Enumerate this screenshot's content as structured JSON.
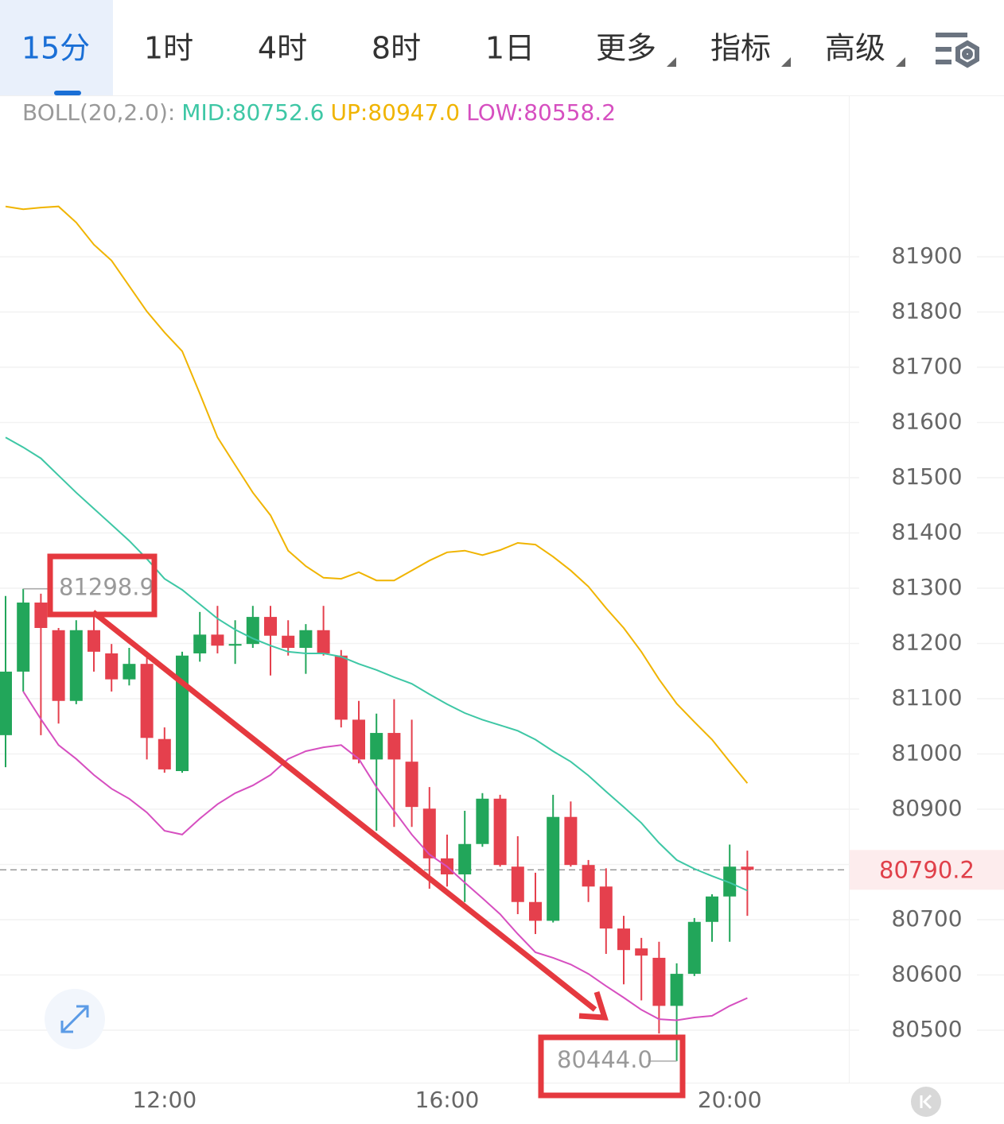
{
  "tabs": [
    "15分",
    "1时",
    "4时",
    "8时",
    "1日",
    "更多",
    "指标",
    "高级"
  ],
  "chart_data": {
    "type": "candlestick",
    "indicator": "BOLL(20,2.0):",
    "categories": [
      null,
      null,
      null,
      null,
      null,
      null,
      null,
      null,
      null,
      "12:00",
      null,
      null,
      null,
      null,
      null,
      null,
      null,
      null,
      null,
      null,
      null,
      null,
      null,
      null,
      null,
      "16:00",
      null,
      null,
      null,
      null,
      null,
      null,
      null,
      null,
      null,
      null,
      null,
      null,
      null,
      null,
      null,
      "20:00",
      null
    ],
    "open": [
      81034,
      81149,
      81274,
      81224,
      81096,
      81224,
      81182,
      81135,
      81163,
      81027,
      80969,
      81182,
      81216,
      81196,
      81199,
      81248,
      81214,
      81192,
      81224,
      81178,
      81062,
      80990,
      81038,
      80986,
      80901,
      80811,
      80782,
      80837,
      80919,
      80796,
      80732,
      80698,
      80886,
      80799,
      80760,
      80684,
      80648,
      80631,
      80544,
      80602,
      80696,
      80742,
      80796
    ],
    "high": [
      81286,
      81298.9,
      81290,
      81228,
      81242,
      81257,
      81199,
      81192,
      81185,
      81048,
      81185,
      81257,
      81268,
      81242,
      81268,
      81268,
      81242,
      81235,
      81268,
      81188,
      81096,
      81073,
      81099,
      81062,
      80940,
      80854,
      80897,
      80929,
      80926,
      80851,
      80785,
      80926,
      80914,
      80808,
      80793,
      80707,
      80667,
      80660,
      80621,
      80703,
      80746,
      80836,
      80825
    ],
    "low": [
      80976,
      81113,
      81034,
      81055,
      81090,
      81149,
      81113,
      81124,
      80990,
      80966,
      80966,
      81167,
      81182,
      81163,
      81192,
      81142,
      81178,
      81145,
      81178,
      81048,
      80983,
      80861,
      80868,
      80868,
      80756,
      80760,
      80732,
      80832,
      80796,
      80710,
      80674,
      80695,
      80796,
      80732,
      80638,
      80583,
      80554,
      80494,
      80444,
      80598,
      80660,
      80660,
      80707
    ],
    "close": [
      81149,
      81274,
      81228,
      81096,
      81224,
      81185,
      81135,
      81163,
      81029,
      80972,
      81178,
      81216,
      81196,
      81199,
      81248,
      81214,
      81192,
      81224,
      81182,
      81062,
      80990,
      81038,
      80990,
      80904,
      80811,
      80782,
      80837,
      80919,
      80799,
      80732,
      80698,
      80886,
      80799,
      80760,
      80684,
      80645,
      80635,
      80544,
      80602,
      80696,
      80742,
      80796,
      80790.2
    ],
    "up_color": "#22a65a",
    "down_color": "#e5404d",
    "series": [
      {
        "name": "MID:80752.6",
        "color": "#3ec7a5",
        "values": [
          81573,
          81555,
          81535,
          81504,
          81473,
          81444,
          81415,
          81386,
          81353,
          81317,
          81297,
          81271,
          81245,
          81225,
          81209,
          81196,
          81185,
          81182,
          81182,
          81176,
          81163,
          81152,
          81139,
          81127,
          81108,
          81090,
          81074,
          81062,
          81052,
          81042,
          81026,
          81005,
          80986,
          80961,
          80932,
          80904,
          80875,
          80839,
          80808,
          80792,
          80779,
          80767,
          80752.6
        ]
      },
      {
        "name": "UP:80947.0",
        "color": "#f0b400",
        "values": [
          81991,
          81986,
          81989,
          81991,
          81962,
          81922,
          81893,
          81847,
          81801,
          81763,
          81729,
          81652,
          81573,
          81523,
          81473,
          81432,
          81368,
          81340,
          81319,
          81317,
          81329,
          81314,
          81314,
          81332,
          81350,
          81365,
          81368,
          81360,
          81369,
          81382,
          81379,
          81357,
          81332,
          81303,
          81264,
          81228,
          81185,
          81135,
          81091,
          81058,
          81026,
          80986,
          80947
        ]
      },
      {
        "name": "LOW:80558.2",
        "color": "#d64fc0",
        "values": [
          null,
          81113,
          81063,
          81016,
          80991,
          80962,
          80937,
          80919,
          80894,
          80861,
          80854,
          80883,
          80909,
          80929,
          80943,
          80962,
          80991,
          81005,
          81012,
          81016,
          80991,
          80940,
          80897,
          80854,
          80818,
          80796,
          80767,
          80739,
          80710,
          80674,
          80641,
          80631,
          80619,
          80602,
          80580,
          80559,
          80537,
          80520,
          80518,
          80523,
          80526,
          80544,
          80558.2
        ]
      }
    ],
    "ylim": [
      80405,
      82192
    ],
    "yticks": [
      80500,
      80600,
      80700,
      80800,
      80900,
      81000,
      81100,
      81200,
      81300,
      81400,
      81500,
      81600,
      81700,
      81800,
      81900
    ],
    "grid": true,
    "max_marker": 81298.9,
    "min_marker": {
      "value": 80444,
      "label": "80444.0"
    },
    "last_price": 80790.2
  }
}
